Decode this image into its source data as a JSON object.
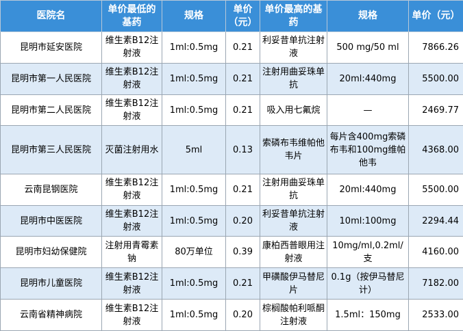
{
  "table": {
    "headers": {
      "hospital": "医院名",
      "low_drug": "单价最低的基药",
      "low_spec": "规格",
      "low_price": "单价（元）",
      "high_drug": "单价最高的基药",
      "high_spec": "规格",
      "high_price": "单价（元）"
    },
    "rows": [
      {
        "hospital": "昆明市延安医院",
        "low_drug": "维生素B12注射液",
        "low_spec": "1ml:0.5mg",
        "low_price": "0.21",
        "high_drug": "利妥昔单抗注射液",
        "high_spec": "500 mg/50 ml",
        "high_price": "7866.26"
      },
      {
        "hospital": "昆明市第一人民医院",
        "low_drug": "维生素B12注射液",
        "low_spec": "1ml:0.5mg",
        "low_price": "0.21",
        "high_drug": "注射用曲妥珠单抗",
        "high_spec": "20ml:440mg",
        "high_price": "5500.00"
      },
      {
        "hospital": "昆明市第二人民医院",
        "low_drug": "维生素B12注射液",
        "low_spec": "1ml:0.5mg",
        "low_price": "0.21",
        "high_drug": "吸入用七氟烷",
        "high_spec": "—",
        "high_price": "2469.77"
      },
      {
        "hospital": "昆明市第三人民医院",
        "low_drug": "灭菌注射用水",
        "low_spec": "5ml",
        "low_price": "0.13",
        "high_drug": "索磷布韦维帕他韦片",
        "high_spec": "每片含400mg索磷布韦和100mg维帕他韦",
        "high_price": "4368.00"
      },
      {
        "hospital": "云南昆钢医院",
        "low_drug": "维生素B12注射液",
        "low_spec": "1ml:0.5mg",
        "low_price": "0.21",
        "high_drug": "注射用曲妥珠单抗",
        "high_spec": "20ml:440mg",
        "high_price": "5500.00"
      },
      {
        "hospital": "昆明市中医医院",
        "low_drug": "维生素B12注射液",
        "low_spec": "1ml:0.5mg",
        "low_price": "0.20",
        "high_drug": "利妥昔单抗注射液",
        "high_spec": "10ml:100mg",
        "high_price": "2294.44"
      },
      {
        "hospital": "昆明市妇幼保健院",
        "low_drug": "注射用青霉素钠",
        "low_spec": "80万单位",
        "low_price": "0.39",
        "high_drug": "康柏西普眼用注射液",
        "high_spec": "10mg/ml,0.2ml/支",
        "high_price": "4160.00"
      },
      {
        "hospital": "昆明市儿童医院",
        "low_drug": "维生素B12注射液",
        "low_spec": "1ml:0.5mg",
        "low_price": "0.21",
        "high_drug": "甲磺酸伊马替尼片",
        "high_spec": "0.1g（按伊马替尼计）",
        "high_price": "7182.00"
      },
      {
        "hospital": "云南省精神病院",
        "low_drug": "维生素B12注射液",
        "low_spec": "1ml:0.5mg",
        "low_price": "0.20",
        "high_drug": "棕榈酸帕利哌酮注射液",
        "high_spec": "1.5ml：150mg",
        "high_price": "2533.00"
      }
    ]
  },
  "colors": {
    "header_bg": "#3a8fd8",
    "stripe_bg": "#ddeaf7"
  }
}
